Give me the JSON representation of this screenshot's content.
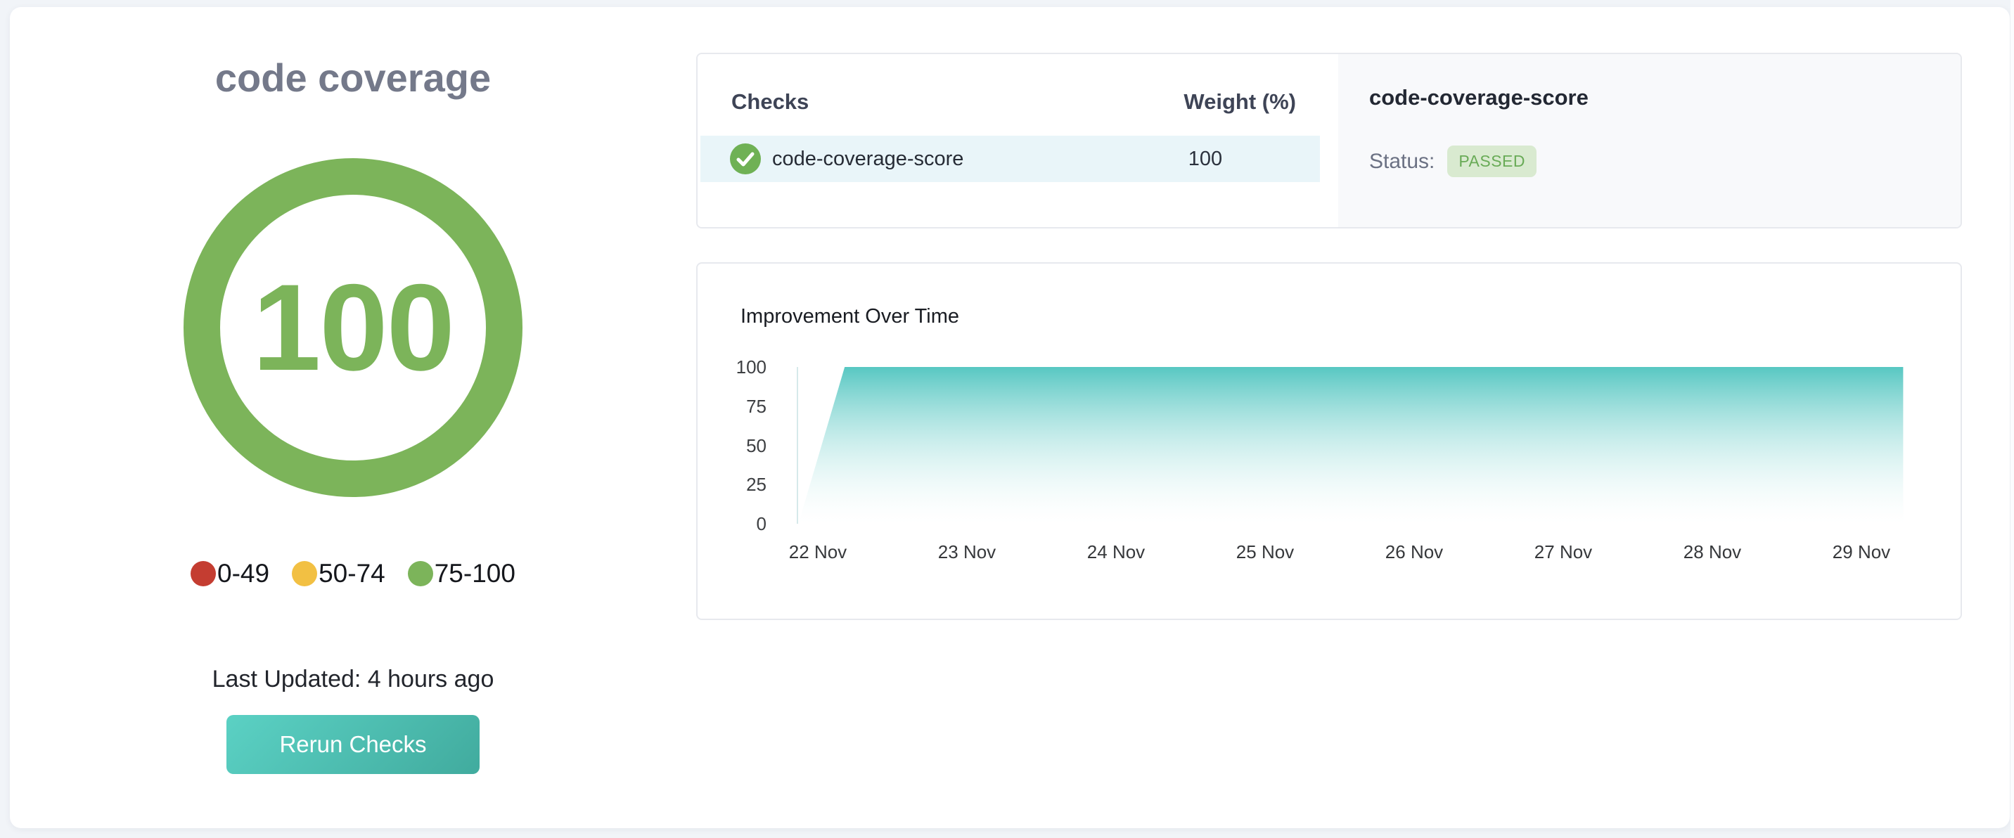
{
  "page": {
    "background": "#f1f4f8",
    "card_background": "#ffffff"
  },
  "score_panel": {
    "title": "code coverage",
    "score": "100",
    "gauge_color": "#7cb45a",
    "legend": [
      {
        "label": "0-49",
        "color": "#c43d31"
      },
      {
        "label": "50-74",
        "color": "#f2c043"
      },
      {
        "label": "75-100",
        "color": "#7cb45a"
      }
    ],
    "last_updated": "Last Updated: 4 hours ago",
    "rerun_button": "Rerun Checks",
    "button_gradient": [
      "#5bd1c4",
      "#41ab9e"
    ]
  },
  "checks_table": {
    "headers": [
      "Checks",
      "Weight (%)"
    ],
    "rows": [
      {
        "icon": "check-circle-icon",
        "icon_color": "#6fb155",
        "name": "code-coverage-score",
        "weight": "100",
        "row_background": "#e9f5f9"
      }
    ]
  },
  "detail_panel": {
    "title": "code-coverage-score",
    "status_label": "Status:",
    "status_value": "PASSED",
    "badge_background": "#d9ead0",
    "badge_text_color": "#69ab57"
  },
  "chart_data": {
    "type": "area",
    "title": "Improvement Over Time",
    "x_labels": [
      "22 Nov",
      "23 Nov",
      "24 Nov",
      "25 Nov",
      "26 Nov",
      "27 Nov",
      "28 Nov",
      "29 Nov"
    ],
    "y_ticks": [
      100,
      75,
      50,
      25,
      0
    ],
    "ylim": [
      0,
      100
    ],
    "series": [
      {
        "name": "score",
        "points": [
          {
            "day_offset": -0.13,
            "value": 0
          },
          {
            "day_offset": 0.18,
            "value": 100
          },
          {
            "day_offset": 7.28,
            "value": 100
          }
        ]
      }
    ],
    "area_top_color": "#57c7c2",
    "area_bottom_color": "#ffffff",
    "axis_line_color": "#d6e9ea",
    "grid": false,
    "legend_position": "none"
  }
}
